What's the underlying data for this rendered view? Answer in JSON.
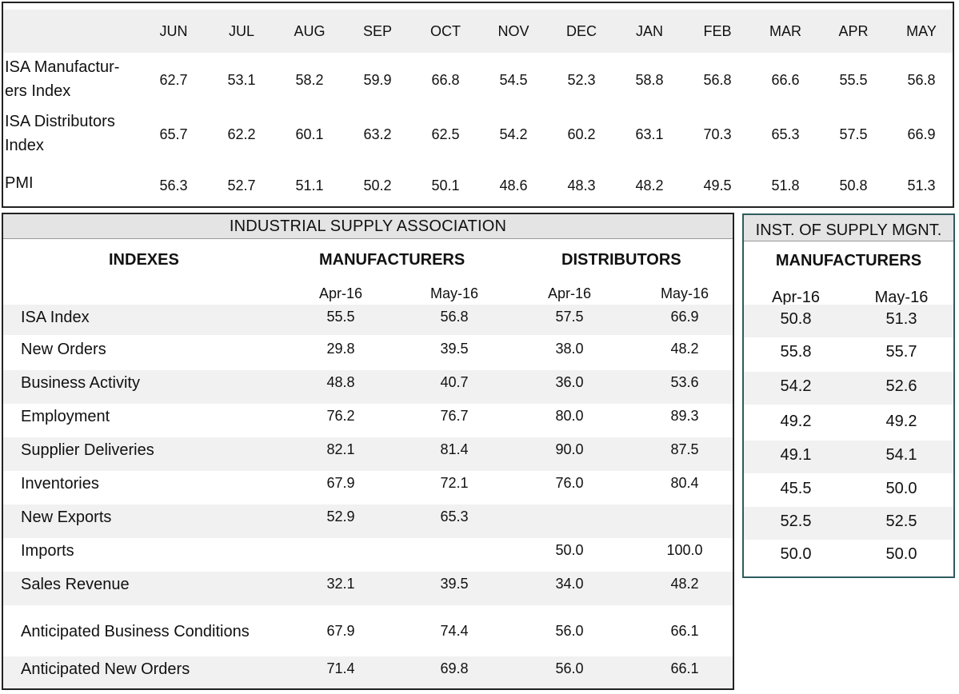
{
  "trend_table": {
    "months": [
      "JUN",
      "JUL",
      "AUG",
      "SEP",
      "OCT",
      "NOV",
      "DEC",
      "JAN",
      "FEB",
      "MAR",
      "APR",
      "MAY"
    ],
    "rows": [
      {
        "label": "ISA Manufactur-ers Index",
        "label_lines": [
          "ISA Manufactur-",
          "ers Index"
        ],
        "values": [
          "62.7",
          "53.1",
          "58.2",
          "59.9",
          "66.8",
          "54.5",
          "52.3",
          "58.8",
          "56.8",
          "66.6",
          "55.5",
          "56.8"
        ]
      },
      {
        "label": "ISA Distributors Index",
        "label_lines": [
          "ISA Distributors",
          "Index"
        ],
        "values": [
          "65.7",
          "62.2",
          "60.1",
          "63.2",
          "62.5",
          "54.2",
          "60.2",
          "63.1",
          "70.3",
          "65.3",
          "57.5",
          "66.9"
        ]
      },
      {
        "label": "PMI",
        "label_lines": [
          "PMI"
        ],
        "values": [
          "56.3",
          "52.7",
          "51.1",
          "50.2",
          "50.1",
          "48.6",
          "48.3",
          "48.2",
          "49.5",
          "51.8",
          "50.8",
          "51.3"
        ]
      }
    ]
  },
  "isa_table": {
    "title": "INDUSTRIAL SUPPLY ASSOCIATION",
    "indexes_header": "INDEXES",
    "manufacturers_header": "MANUFACTURERS",
    "distributors_header": "DISTRIBUTORS",
    "subheaders": [
      "Apr-16",
      "May-16",
      "Apr-16",
      "May-16"
    ],
    "rows": [
      {
        "label": "ISA Index",
        "values": [
          "55.5",
          "56.8",
          "57.5",
          "66.9"
        ]
      },
      {
        "label": "New Orders",
        "values": [
          "29.8",
          "39.5",
          "38.0",
          "48.2"
        ]
      },
      {
        "label": "Business Activity",
        "values": [
          "48.8",
          "40.7",
          "36.0",
          "53.6"
        ]
      },
      {
        "label": "Employment",
        "values": [
          "76.2",
          "76.7",
          "80.0",
          "89.3"
        ]
      },
      {
        "label": "Supplier Deliveries",
        "values": [
          "82.1",
          "81.4",
          "90.0",
          "87.5"
        ]
      },
      {
        "label": "Inventories",
        "values": [
          "67.9",
          "72.1",
          "76.0",
          "80.4"
        ]
      },
      {
        "label": "New Exports",
        "values": [
          "52.9",
          "65.3",
          "",
          ""
        ]
      },
      {
        "label": "Imports",
        "values": [
          "",
          "",
          "50.0",
          "100.0"
        ]
      },
      {
        "label": "Sales Revenue",
        "values": [
          "32.1",
          "39.5",
          "34.0",
          "48.2"
        ]
      },
      {
        "label": "Anticipated Business Conditions",
        "values": [
          "67.9",
          "74.4",
          "56.0",
          "66.1"
        ]
      },
      {
        "label": "Anticipated New Orders",
        "values": [
          "71.4",
          "69.8",
          "56.0",
          "66.1"
        ]
      }
    ]
  },
  "ism_table": {
    "title": "INST. OF SUPPLY MGNT.",
    "manufacturers_header": "MANUFACTURERS",
    "subheaders": [
      "Apr-16",
      "May-16"
    ],
    "rows": [
      [
        "50.8",
        "51.3"
      ],
      [
        "55.8",
        "55.7"
      ],
      [
        "54.2",
        "52.6"
      ],
      [
        "49.2",
        "49.2"
      ],
      [
        "49.1",
        "54.1"
      ],
      [
        "45.5",
        "50.0"
      ],
      [
        "52.5",
        "52.5"
      ],
      [
        "50.0",
        "50.0"
      ]
    ]
  },
  "colors": {
    "header_fill": "#efefef",
    "title_fill": "#e4e4e4",
    "row_stripe": "#f1f1f1",
    "isa_border": "#222222",
    "ism_border": "#2e5c5e"
  }
}
